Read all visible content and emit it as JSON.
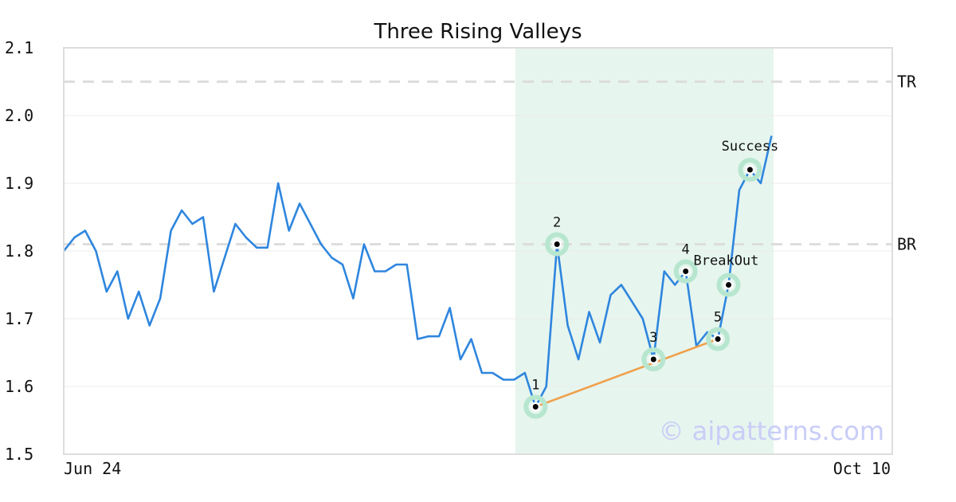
{
  "chart_data": {
    "type": "line",
    "title": "Three Rising Valleys",
    "xlabel": "",
    "ylabel": "",
    "ylim": [
      1.5,
      2.1
    ],
    "yticks": [
      "1.5",
      "1.6",
      "1.7",
      "1.8",
      "1.9",
      "2.0",
      "2.1"
    ],
    "xtick_labels": [
      "Jun 24",
      "Oct 10"
    ],
    "grid": "horizontal",
    "colors": {
      "line": "#2e86de",
      "trend": "#f0a04b",
      "highlight": "#e6f5ee",
      "marker_halo": "#b7e6cf",
      "ref_line": "#dddddd",
      "axes": "#dddddd"
    },
    "series": [
      {
        "values": [
          1.8,
          1.82,
          1.83,
          1.8,
          1.74,
          1.77,
          1.7,
          1.74,
          1.69,
          1.73,
          1.83,
          1.86,
          1.84,
          1.85,
          1.74,
          1.79,
          1.84,
          1.82,
          1.805,
          1.805,
          1.9,
          1.83,
          1.87,
          1.84,
          1.81,
          1.79,
          1.78,
          1.73,
          1.81,
          1.77,
          1.77,
          1.78,
          1.78,
          1.67,
          1.674,
          1.674,
          1.716,
          1.64,
          1.67,
          1.62,
          1.62,
          1.61,
          1.61,
          1.62,
          1.57,
          1.6,
          1.81,
          1.69,
          1.64,
          1.71,
          1.665,
          1.735,
          1.75,
          1.725,
          1.7,
          1.64,
          1.77,
          1.75,
          1.77,
          1.66,
          1.68,
          1.67,
          1.75,
          1.89,
          1.92,
          1.9,
          1.97
        ]
      }
    ],
    "highlight_range": {
      "start_index": 42,
      "end_index": 66
    },
    "reference_lines": [
      {
        "label": "TR",
        "y": 2.05
      },
      {
        "label": "BR",
        "y": 1.81
      }
    ],
    "trend_line": {
      "from": {
        "index": 44,
        "y": 1.57
      },
      "to": {
        "index": 61,
        "y": 1.67
      }
    },
    "points": [
      {
        "label": "1",
        "index": 44,
        "y": 1.57
      },
      {
        "label": "2",
        "index": 46,
        "y": 1.81
      },
      {
        "label": "3",
        "index": 55,
        "y": 1.64
      },
      {
        "label": "4",
        "index": 58,
        "y": 1.77
      },
      {
        "label": "5",
        "index": 61,
        "y": 1.67
      },
      {
        "label": "BreakOut",
        "index": 62,
        "y": 1.75
      },
      {
        "label": "Success",
        "index": 64,
        "y": 1.92
      }
    ],
    "watermark": "© aipatterns.com"
  }
}
